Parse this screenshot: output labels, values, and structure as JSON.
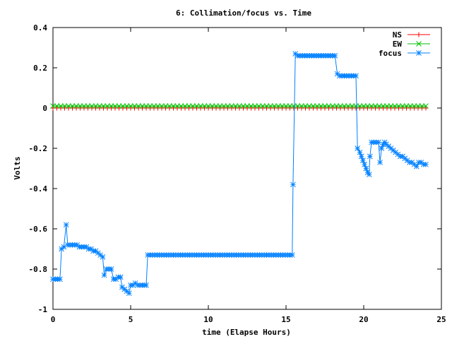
{
  "chart_data": {
    "type": "line",
    "title": "6: Collimation/focus vs. Time",
    "xlabel": "time (Elapse Hours)",
    "ylabel": "Volts",
    "xlim": [
      0,
      25
    ],
    "ylim": [
      -1,
      0.4
    ],
    "xticks": [
      0,
      5,
      10,
      15,
      20,
      25
    ],
    "yticks": [
      -1,
      -0.8,
      -0.6,
      -0.4,
      -0.2,
      0,
      0.2,
      0.4
    ],
    "xtick_labels": [
      "0",
      "5",
      "10",
      "15",
      "20",
      "25"
    ],
    "ytick_labels": [
      "-1",
      "-0.8",
      "-0.6",
      "-0.4",
      "-0.2",
      "0",
      "0.2",
      "0.4"
    ],
    "grid": false,
    "legend_position": "top-right",
    "series": [
      {
        "name": "NS",
        "color": "#ff0000",
        "marker": "plus",
        "x_start": 0,
        "x_end": 24,
        "x_step": 0.25,
        "constant_value": 0.0
      },
      {
        "name": "EW",
        "color": "#00c000",
        "marker": "cross",
        "x_start": 0,
        "x_end": 24,
        "x_step": 0.25,
        "constant_value": 0.01
      },
      {
        "name": "focus",
        "color": "#0080ff",
        "marker": "asterisk",
        "points": [
          [
            0.0,
            -0.85
          ],
          [
            0.15,
            -0.85
          ],
          [
            0.3,
            -0.85
          ],
          [
            0.45,
            -0.85
          ],
          [
            0.55,
            -0.7
          ],
          [
            0.7,
            -0.69
          ],
          [
            0.85,
            -0.58
          ],
          [
            0.95,
            -0.68
          ],
          [
            1.1,
            -0.68
          ],
          [
            1.25,
            -0.68
          ],
          [
            1.4,
            -0.68
          ],
          [
            1.55,
            -0.68
          ],
          [
            1.7,
            -0.69
          ],
          [
            1.85,
            -0.69
          ],
          [
            2.0,
            -0.69
          ],
          [
            2.15,
            -0.69
          ],
          [
            2.3,
            -0.7
          ],
          [
            2.45,
            -0.7
          ],
          [
            2.6,
            -0.71
          ],
          [
            2.75,
            -0.71
          ],
          [
            2.9,
            -0.72
          ],
          [
            3.05,
            -0.73
          ],
          [
            3.2,
            -0.74
          ],
          [
            3.3,
            -0.83
          ],
          [
            3.45,
            -0.8
          ],
          [
            3.6,
            -0.8
          ],
          [
            3.75,
            -0.8
          ],
          [
            3.9,
            -0.85
          ],
          [
            4.05,
            -0.85
          ],
          [
            4.2,
            -0.84
          ],
          [
            4.35,
            -0.84
          ],
          [
            4.45,
            -0.89
          ],
          [
            4.6,
            -0.9
          ],
          [
            4.75,
            -0.91
          ],
          [
            4.9,
            -0.92
          ],
          [
            5.0,
            -0.88
          ],
          [
            5.15,
            -0.88
          ],
          [
            5.3,
            -0.87
          ],
          [
            5.45,
            -0.88
          ],
          [
            5.6,
            -0.88
          ],
          [
            5.75,
            -0.88
          ],
          [
            5.9,
            -0.88
          ],
          [
            6.0,
            -0.88
          ],
          [
            6.1,
            -0.73
          ],
          [
            6.25,
            -0.73
          ],
          [
            6.4,
            -0.73
          ],
          [
            6.55,
            -0.73
          ],
          [
            6.7,
            -0.73
          ],
          [
            6.85,
            -0.73
          ],
          [
            7.0,
            -0.73
          ],
          [
            7.15,
            -0.73
          ],
          [
            7.3,
            -0.73
          ],
          [
            7.45,
            -0.73
          ],
          [
            7.6,
            -0.73
          ],
          [
            7.75,
            -0.73
          ],
          [
            7.9,
            -0.73
          ],
          [
            8.05,
            -0.73
          ],
          [
            8.2,
            -0.73
          ],
          [
            8.35,
            -0.73
          ],
          [
            8.5,
            -0.73
          ],
          [
            8.65,
            -0.73
          ],
          [
            8.8,
            -0.73
          ],
          [
            8.95,
            -0.73
          ],
          [
            9.1,
            -0.73
          ],
          [
            9.25,
            -0.73
          ],
          [
            9.4,
            -0.73
          ],
          [
            9.55,
            -0.73
          ],
          [
            9.7,
            -0.73
          ],
          [
            9.85,
            -0.73
          ],
          [
            10.0,
            -0.73
          ],
          [
            10.15,
            -0.73
          ],
          [
            10.3,
            -0.73
          ],
          [
            10.45,
            -0.73
          ],
          [
            10.6,
            -0.73
          ],
          [
            10.75,
            -0.73
          ],
          [
            10.9,
            -0.73
          ],
          [
            11.05,
            -0.73
          ],
          [
            11.2,
            -0.73
          ],
          [
            11.35,
            -0.73
          ],
          [
            11.5,
            -0.73
          ],
          [
            11.65,
            -0.73
          ],
          [
            11.8,
            -0.73
          ],
          [
            11.95,
            -0.73
          ],
          [
            12.1,
            -0.73
          ],
          [
            12.25,
            -0.73
          ],
          [
            12.4,
            -0.73
          ],
          [
            12.55,
            -0.73
          ],
          [
            12.7,
            -0.73
          ],
          [
            12.85,
            -0.73
          ],
          [
            13.0,
            -0.73
          ],
          [
            13.15,
            -0.73
          ],
          [
            13.3,
            -0.73
          ],
          [
            13.45,
            -0.73
          ],
          [
            13.6,
            -0.73
          ],
          [
            13.75,
            -0.73
          ],
          [
            13.9,
            -0.73
          ],
          [
            14.05,
            -0.73
          ],
          [
            14.2,
            -0.73
          ],
          [
            14.35,
            -0.73
          ],
          [
            14.5,
            -0.73
          ],
          [
            14.65,
            -0.73
          ],
          [
            14.8,
            -0.73
          ],
          [
            14.95,
            -0.73
          ],
          [
            15.1,
            -0.73
          ],
          [
            15.25,
            -0.73
          ],
          [
            15.4,
            -0.73
          ],
          [
            15.45,
            -0.38
          ],
          [
            15.6,
            0.27
          ],
          [
            15.75,
            0.26
          ],
          [
            15.9,
            0.26
          ],
          [
            16.05,
            0.26
          ],
          [
            16.2,
            0.26
          ],
          [
            16.35,
            0.26
          ],
          [
            16.5,
            0.26
          ],
          [
            16.65,
            0.26
          ],
          [
            16.8,
            0.26
          ],
          [
            16.95,
            0.26
          ],
          [
            17.1,
            0.26
          ],
          [
            17.25,
            0.26
          ],
          [
            17.4,
            0.26
          ],
          [
            17.55,
            0.26
          ],
          [
            17.7,
            0.26
          ],
          [
            17.85,
            0.26
          ],
          [
            18.0,
            0.26
          ],
          [
            18.15,
            0.26
          ],
          [
            18.3,
            0.17
          ],
          [
            18.45,
            0.16
          ],
          [
            18.6,
            0.16
          ],
          [
            18.75,
            0.16
          ],
          [
            18.9,
            0.16
          ],
          [
            19.05,
            0.16
          ],
          [
            19.2,
            0.16
          ],
          [
            19.35,
            0.16
          ],
          [
            19.5,
            0.16
          ],
          [
            19.6,
            -0.2
          ],
          [
            19.75,
            -0.22
          ],
          [
            19.85,
            -0.24
          ],
          [
            19.95,
            -0.26
          ],
          [
            20.05,
            -0.28
          ],
          [
            20.15,
            -0.3
          ],
          [
            20.25,
            -0.32
          ],
          [
            20.35,
            -0.33
          ],
          [
            20.4,
            -0.24
          ],
          [
            20.5,
            -0.17
          ],
          [
            20.65,
            -0.17
          ],
          [
            20.8,
            -0.17
          ],
          [
            20.95,
            -0.17
          ],
          [
            21.05,
            -0.27
          ],
          [
            21.15,
            -0.2
          ],
          [
            21.25,
            -0.18
          ],
          [
            21.35,
            -0.17
          ],
          [
            21.45,
            -0.18
          ],
          [
            21.6,
            -0.19
          ],
          [
            21.75,
            -0.2
          ],
          [
            21.9,
            -0.21
          ],
          [
            22.05,
            -0.22
          ],
          [
            22.2,
            -0.23
          ],
          [
            22.35,
            -0.24
          ],
          [
            22.5,
            -0.24
          ],
          [
            22.65,
            -0.25
          ],
          [
            22.8,
            -0.26
          ],
          [
            22.95,
            -0.27
          ],
          [
            23.1,
            -0.27
          ],
          [
            23.25,
            -0.28
          ],
          [
            23.4,
            -0.29
          ],
          [
            23.55,
            -0.27
          ],
          [
            23.7,
            -0.27
          ],
          [
            23.85,
            -0.28
          ],
          [
            24.0,
            -0.28
          ]
        ]
      }
    ]
  }
}
